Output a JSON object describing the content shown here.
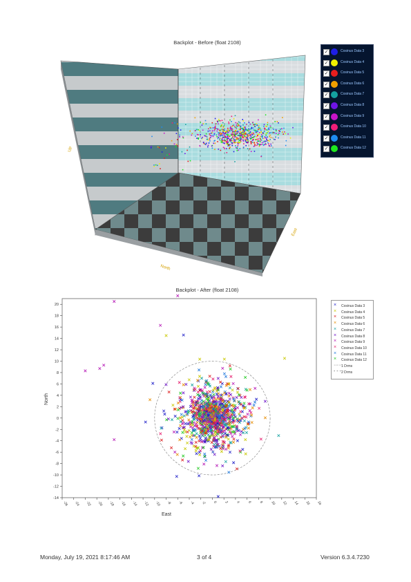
{
  "chart3d": {
    "title": "Backplot - Before (float 2108)",
    "axis_up": "Up",
    "axis_north": "North",
    "axis_east": "East"
  },
  "chart_data": [
    {
      "type": "scatter",
      "title": "Backplot - Before (float 2108)",
      "xlabel": "East",
      "ylabel": "North",
      "zlabel": "Up",
      "legend_position": "right",
      "series": [
        {
          "name": "Cosinus Data 3",
          "color": "#1e1ee6"
        },
        {
          "name": "Cosinus Data 4",
          "color": "#f0f000"
        },
        {
          "name": "Cosinus Data 5",
          "color": "#e61e1e"
        },
        {
          "name": "Cosinus Data 6",
          "color": "#f0a000"
        },
        {
          "name": "Cosinus Data 7",
          "color": "#14a0a0"
        },
        {
          "name": "Cosinus Data 8",
          "color": "#6e14e6"
        },
        {
          "name": "Cosinus Data 9",
          "color": "#c814c8"
        },
        {
          "name": "Cosinus Data 10",
          "color": "#f01e78"
        },
        {
          "name": "Cosinus Data 11",
          "color": "#1e8cf0"
        },
        {
          "name": "Cosinus Data 12",
          "color": "#1ee61e"
        }
      ]
    },
    {
      "type": "scatter",
      "title": "Backplot - After (float 2108)",
      "xlabel": "East",
      "ylabel": "North",
      "xlim": [
        -26,
        18
      ],
      "ylim": [
        -14,
        21
      ],
      "xticks": [
        "-26",
        "-24",
        "-22",
        "-20",
        "-18",
        "-16",
        "-14",
        "-12",
        "-10",
        "-8",
        "-6",
        "-4",
        "-2",
        "0",
        "2",
        "4",
        "6",
        "8",
        "10",
        "12",
        "14",
        "16",
        "18"
      ],
      "yticks": [
        "20",
        "18",
        "16",
        "14",
        "12",
        "10",
        "8",
        "6",
        "4",
        "2",
        "0",
        "-2",
        "-4",
        "-6",
        "-8",
        "-10",
        "-12",
        "-14"
      ],
      "legend_position": "right",
      "series": [
        {
          "name": "Cosinus Data 3",
          "color": "#1e1ec8"
        },
        {
          "name": "Cosinus Data 4",
          "color": "#c8c800"
        },
        {
          "name": "Cosinus Data 5",
          "color": "#dc1e1e"
        },
        {
          "name": "Cosinus Data 6",
          "color": "#e68c00"
        },
        {
          "name": "Cosinus Data 7",
          "color": "#14a0a0"
        },
        {
          "name": "Cosinus Data 8",
          "color": "#6e14c8"
        },
        {
          "name": "Cosinus Data 9",
          "color": "#b414b4"
        },
        {
          "name": "Cosinus Data 10",
          "color": "#e61e6e"
        },
        {
          "name": "Cosinus Data 11",
          "color": "#1e78dc"
        },
        {
          "name": "Cosinus Data 12",
          "color": "#1ec81e"
        }
      ],
      "circles": [
        {
          "name": "1 Drms",
          "style": "dotted"
        },
        {
          "name": "2 Drms",
          "style": "dashed",
          "radius": 10
        }
      ],
      "outliers": [
        {
          "x": -17,
          "y": 20.5,
          "series": 6
        },
        {
          "x": -6,
          "y": 21.5,
          "series": 6
        },
        {
          "x": -22,
          "y": 8.3,
          "series": 6
        },
        {
          "x": -19.5,
          "y": 8.7,
          "series": 6
        },
        {
          "x": -18.8,
          "y": 9.3,
          "series": 6
        },
        {
          "x": -17,
          "y": -3.8,
          "series": 6
        },
        {
          "x": -9,
          "y": 16.3,
          "series": 6
        },
        {
          "x": -5,
          "y": 14.6,
          "series": 0
        },
        {
          "x": -8,
          "y": 14.5,
          "series": 1
        },
        {
          "x": 1,
          "y": -13.8,
          "series": 0
        },
        {
          "x": 12.5,
          "y": 10.5,
          "series": 1
        }
      ]
    }
  ],
  "footer": {
    "left": "Monday, July 19, 2021 8:17:46 AM",
    "center": "3 of 4",
    "right": "Version 6.3.4.7230"
  }
}
